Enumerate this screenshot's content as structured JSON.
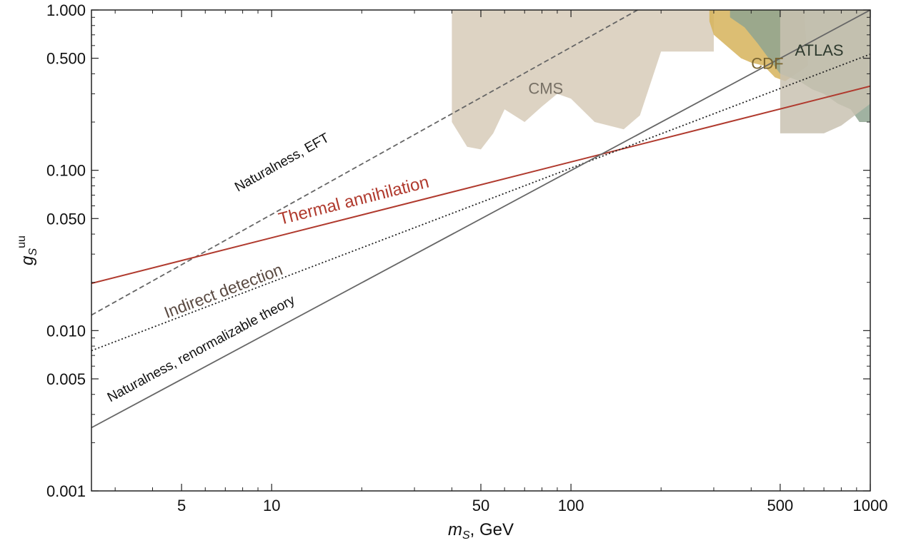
{
  "chart_data": {
    "type": "line",
    "xlabel": "m",
    "xlabel_sub": "S",
    "xlabel_unit": ", GeV",
    "ylabel": "g",
    "ylabel_sub": "S",
    "ylabel_sup": "uu",
    "xscale": "log",
    "yscale": "log",
    "xlim": [
      2.5,
      1000
    ],
    "ylim": [
      0.001,
      1.0
    ],
    "grid": false,
    "x_ticks": [
      {
        "value": 5,
        "label": "5"
      },
      {
        "value": 10,
        "label": "10"
      },
      {
        "value": 50,
        "label": "50"
      },
      {
        "value": 100,
        "label": "100"
      },
      {
        "value": 500,
        "label": "500"
      },
      {
        "value": 1000,
        "label": "1000"
      }
    ],
    "y_ticks": [
      {
        "value": 0.001,
        "label": "0.001"
      },
      {
        "value": 0.005,
        "label": "0.005"
      },
      {
        "value": 0.01,
        "label": "0.010"
      },
      {
        "value": 0.05,
        "label": "0.050"
      },
      {
        "value": 0.1,
        "label": "0.100"
      },
      {
        "value": 0.5,
        "label": "0.500"
      },
      {
        "value": 1.0,
        "label": "1.000"
      }
    ],
    "lines": [
      {
        "id": "naturalness-eft",
        "label": "Naturalness, EFT",
        "style": "dashed",
        "color": "#666666",
        "points": [
          [
            2.5,
            0.0125
          ],
          [
            167,
            1.0
          ]
        ],
        "label_anchor": [
          11,
          0.106
        ],
        "label_color": "#111111"
      },
      {
        "id": "thermal-annihilation",
        "label": "Thermal annihilation",
        "style": "solid",
        "color": "#b03a2e",
        "points": [
          [
            2.5,
            0.0197
          ],
          [
            1000,
            0.335
          ]
        ],
        "label_anchor": [
          19,
          0.06
        ],
        "label_color": "#b03a2e"
      },
      {
        "id": "indirect-detection",
        "label": "Indirect detection",
        "style": "dotted",
        "color": "#222222",
        "points": [
          [
            2.5,
            0.0075
          ],
          [
            1000,
            0.53
          ]
        ],
        "label_anchor": [
          7,
          0.0164
        ],
        "label_color": "#5a4a42"
      },
      {
        "id": "naturalness-renormalizable",
        "label": "Naturalness, renormalizable theory",
        "style": "solid",
        "color": "#666666",
        "points": [
          [
            2.5,
            0.00248
          ],
          [
            1000,
            1.0
          ]
        ],
        "label_anchor": [
          5.9,
          0.0073
        ],
        "label_color": "#111111"
      }
    ],
    "regions": [
      {
        "id": "cms",
        "label": "CMS",
        "color": "#ddd3c3",
        "label_anchor": [
          72,
          0.3
        ],
        "label_color": "#777065",
        "boundary": [
          [
            40,
            1.0
          ],
          [
            300,
            1.0
          ],
          [
            300,
            0.55
          ],
          [
            200,
            0.55
          ],
          [
            170,
            0.22
          ],
          [
            150,
            0.18
          ],
          [
            120,
            0.2
          ],
          [
            100,
            0.28
          ],
          [
            90,
            0.3
          ],
          [
            80,
            0.25
          ],
          [
            70,
            0.2
          ],
          [
            60,
            0.24
          ],
          [
            55,
            0.17
          ],
          [
            50,
            0.135
          ],
          [
            45,
            0.14
          ],
          [
            40,
            0.2
          ]
        ]
      },
      {
        "id": "cdf",
        "label": "CDF",
        "color": "#d6b35a",
        "label_anchor": [
          400,
          0.43
        ],
        "label_color": "#7a6530",
        "boundary": [
          [
            290,
            1.0
          ],
          [
            600,
            1.0
          ],
          [
            620,
            0.45
          ],
          [
            520,
            0.36
          ],
          [
            480,
            0.38
          ],
          [
            440,
            0.45
          ],
          [
            400,
            0.47
          ],
          [
            370,
            0.5
          ],
          [
            330,
            0.6
          ],
          [
            300,
            0.7
          ],
          [
            290,
            0.85
          ]
        ]
      },
      {
        "id": "atlas",
        "label": "ATLAS",
        "color": "#8fa490",
        "label_anchor": [
          560,
          0.52
        ],
        "label_color": "#2e3a2e",
        "boundary": [
          [
            340,
            1.0
          ],
          [
            1000,
            1.0
          ],
          [
            1000,
            0.2
          ],
          [
            920,
            0.2
          ],
          [
            860,
            0.24
          ],
          [
            780,
            0.26
          ],
          [
            700,
            0.3
          ],
          [
            640,
            0.32
          ],
          [
            580,
            0.36
          ],
          [
            500,
            0.4
          ],
          [
            420,
            0.62
          ],
          [
            380,
            0.78
          ],
          [
            340,
            0.9
          ]
        ]
      },
      {
        "id": "cms-high-mass",
        "label": "",
        "color": "#c9c2b2",
        "boundary": [
          [
            500,
            1.0
          ],
          [
            1000,
            1.0
          ],
          [
            1000,
            0.26
          ],
          [
            800,
            0.19
          ],
          [
            700,
            0.17
          ],
          [
            500,
            0.17
          ]
        ]
      }
    ]
  }
}
